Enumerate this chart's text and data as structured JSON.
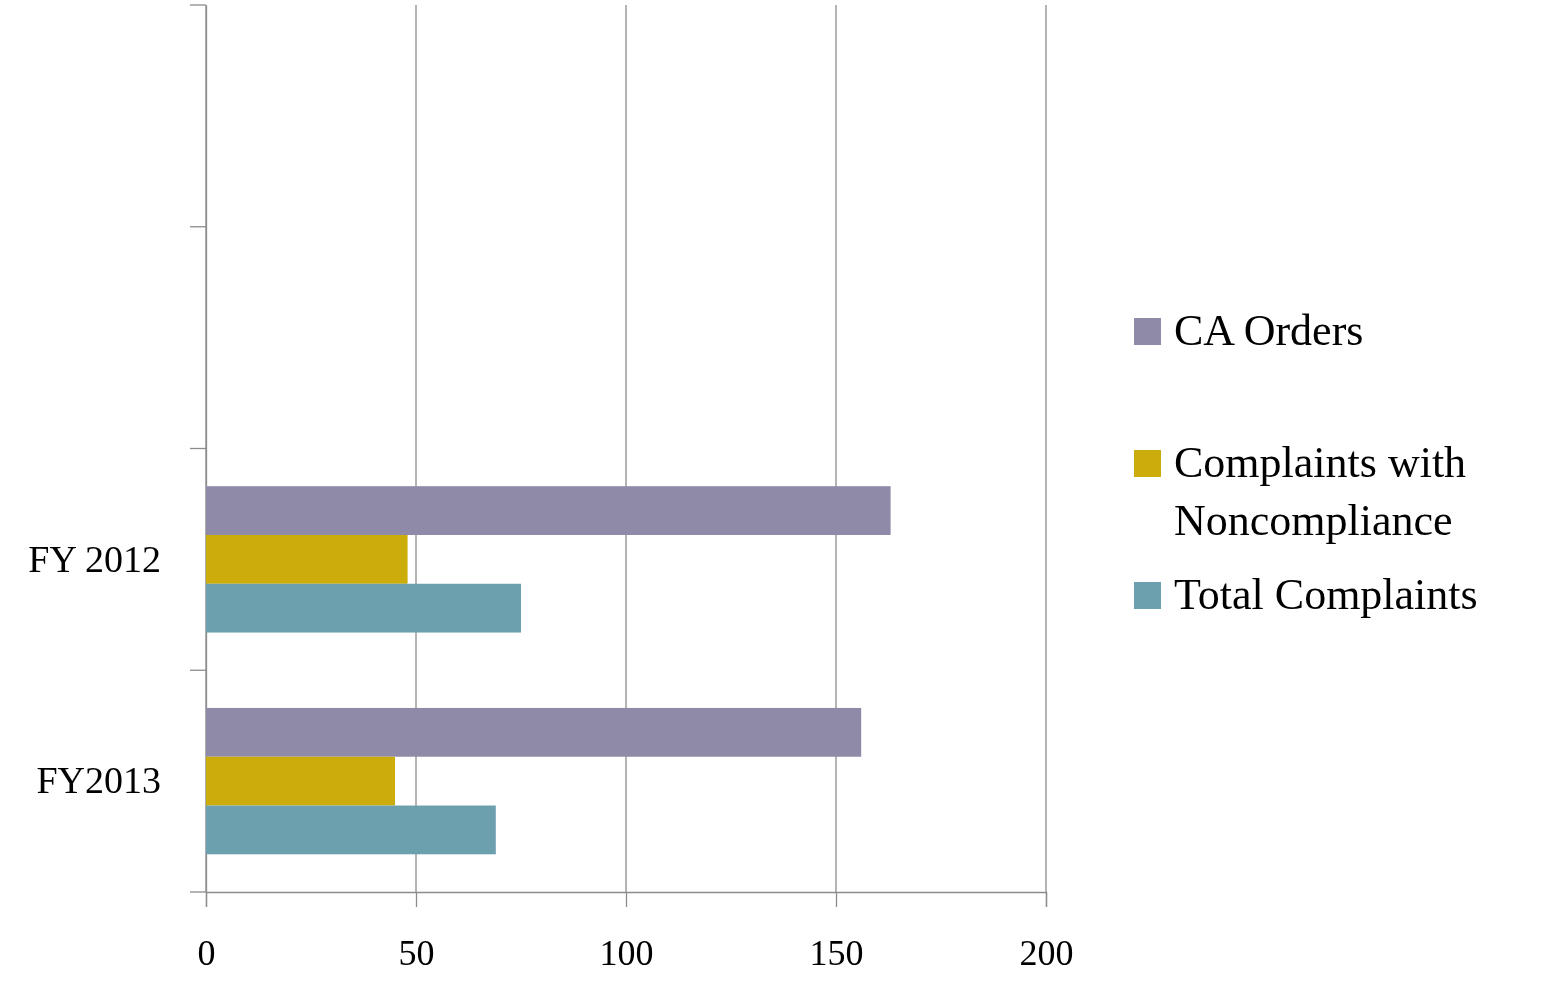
{
  "chart_data": {
    "type": "bar",
    "orientation": "horizontal",
    "categories": [
      null,
      null,
      "FY 2012",
      "FY2013"
    ],
    "series": [
      {
        "name": "CA Orders",
        "color": "#8e8aa8",
        "values": [
          null,
          null,
          163,
          156
        ]
      },
      {
        "name": "Complaints with Noncompliance",
        "color": "#ccac0a",
        "values": [
          null,
          null,
          48,
          45
        ]
      },
      {
        "name": "Total Complaints",
        "color": "#6da0ae",
        "values": [
          null,
          null,
          75,
          69
        ]
      }
    ],
    "xlim": [
      0,
      200
    ],
    "xticks": [
      0,
      50,
      100,
      150,
      200
    ],
    "grid": "x",
    "legend": "right"
  }
}
